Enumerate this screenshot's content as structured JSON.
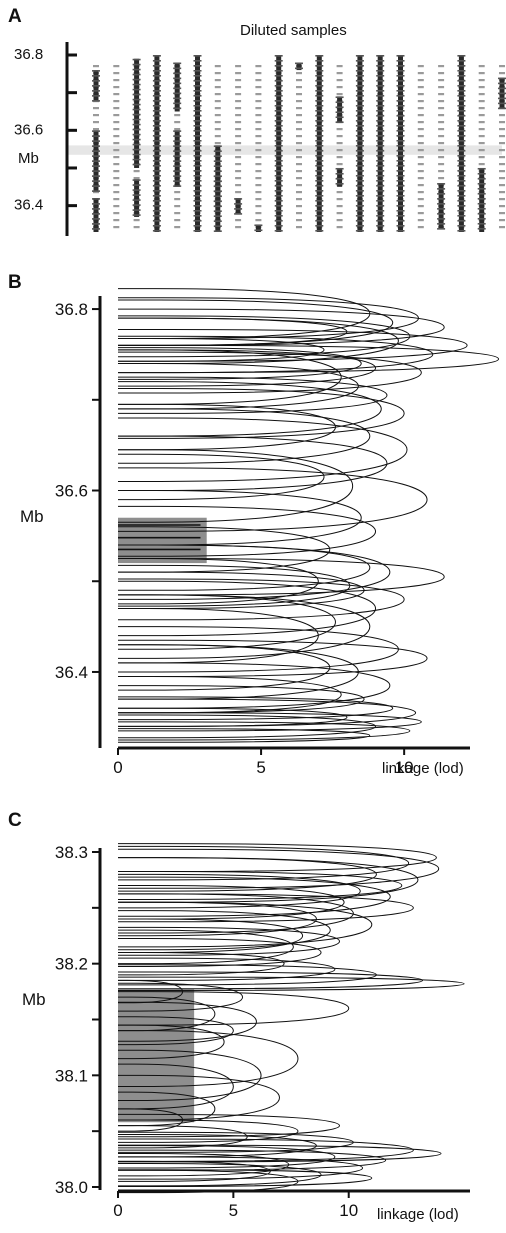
{
  "chart_data": [
    {
      "panel": "A",
      "type": "heatmap",
      "title": "Diluted samples",
      "ylabel": "Mb",
      "ylim": [
        36.33,
        36.8
      ],
      "yticks": [
        "36.8",
        "36.6",
        "36.4"
      ],
      "highlight_band": [
        36.535,
        36.56
      ],
      "num_samples": 21,
      "samples": [
        {
          "solid": [
            [
              36.68,
              36.76
            ],
            [
              36.44,
              36.6
            ],
            [
              36.33,
              36.42
            ]
          ]
        },
        {
          "solid": []
        },
        {
          "solid": [
            [
              36.5,
              36.79
            ],
            [
              36.37,
              36.47
            ]
          ]
        },
        {
          "solid": [
            [
              36.33,
              36.8
            ]
          ]
        },
        {
          "solid": [
            [
              36.65,
              36.78
            ],
            [
              36.45,
              36.6
            ]
          ]
        },
        {
          "solid": [
            [
              36.33,
              36.8
            ]
          ]
        },
        {
          "solid": [
            [
              36.33,
              36.56
            ],
            [
              36.4,
              36.48
            ]
          ]
        },
        {
          "solid": [
            [
              36.38,
              36.42
            ]
          ]
        },
        {
          "solid": [
            [
              36.33,
              36.35
            ]
          ]
        },
        {
          "solid": [
            [
              36.33,
              36.8
            ]
          ]
        },
        {
          "solid": [
            [
              36.76,
              36.78
            ]
          ]
        },
        {
          "solid": [
            [
              36.33,
              36.8
            ]
          ]
        },
        {
          "solid": [
            [
              36.45,
              36.5
            ],
            [
              36.62,
              36.69
            ]
          ]
        },
        {
          "solid": [
            [
              36.33,
              36.8
            ]
          ]
        },
        {
          "solid": [
            [
              36.33,
              36.8
            ]
          ]
        },
        {
          "solid": [
            [
              36.33,
              36.8
            ]
          ]
        },
        {
          "solid": []
        },
        {
          "solid": [
            [
              36.34,
              36.46
            ]
          ]
        },
        {
          "solid": [
            [
              36.33,
              36.8
            ]
          ]
        },
        {
          "solid": [
            [
              36.33,
              36.5
            ]
          ]
        },
        {
          "solid": [
            [
              36.66,
              36.74
            ]
          ]
        }
      ]
    },
    {
      "panel": "B",
      "type": "line",
      "xlabel": "linkage (lod)",
      "ylabel": "Mb",
      "xlim": [
        0,
        13
      ],
      "ylim": [
        36.325,
        36.81
      ],
      "xticks": [
        "0",
        "5",
        "10"
      ],
      "yticks": [
        "36.8",
        "36.6",
        "36.4"
      ],
      "highlight_box": {
        "x": [
          0,
          3.1
        ],
        "y": [
          36.52,
          36.57
        ],
        "lines_y": [
          36.535,
          36.548,
          36.562
        ]
      },
      "peaks": [
        {
          "y": 36.795,
          "width": 0.055,
          "lod": 8.8
        },
        {
          "y": 36.79,
          "width": 0.045,
          "lod": 10.5
        },
        {
          "y": 36.785,
          "width": 0.05,
          "lod": 9.6
        },
        {
          "y": 36.78,
          "width": 0.04,
          "lod": 11.4
        },
        {
          "y": 36.775,
          "width": 0.03,
          "lod": 8.0
        },
        {
          "y": 36.77,
          "width": 0.045,
          "lod": 10.2
        },
        {
          "y": 36.765,
          "width": 0.05,
          "lod": 9.8
        },
        {
          "y": 36.76,
          "width": 0.035,
          "lod": 12.2
        },
        {
          "y": 36.755,
          "width": 0.025,
          "lod": 7.2
        },
        {
          "y": 36.75,
          "width": 0.04,
          "lod": 11.0
        },
        {
          "y": 36.745,
          "width": 0.03,
          "lod": 13.3
        },
        {
          "y": 36.74,
          "width": 0.035,
          "lod": 8.5
        },
        {
          "y": 36.735,
          "width": 0.04,
          "lod": 9.0
        },
        {
          "y": 36.73,
          "width": 0.045,
          "lod": 10.6
        },
        {
          "y": 36.725,
          "width": 0.06,
          "lod": 7.8
        },
        {
          "y": 36.715,
          "width": 0.05,
          "lod": 8.4
        },
        {
          "y": 36.705,
          "width": 0.04,
          "lod": 9.4
        },
        {
          "y": 36.69,
          "width": 0.06,
          "lod": 9.2
        },
        {
          "y": 36.685,
          "width": 0.055,
          "lod": 10.0
        },
        {
          "y": 36.67,
          "width": 0.05,
          "lod": 7.6
        },
        {
          "y": 36.66,
          "width": 0.06,
          "lod": 8.8
        },
        {
          "y": 36.645,
          "width": 0.07,
          "lod": 10.1
        },
        {
          "y": 36.63,
          "width": 0.06,
          "lod": 9.4
        },
        {
          "y": 36.615,
          "width": 0.05,
          "lod": 7.2
        },
        {
          "y": 36.605,
          "width": 0.08,
          "lod": 8.2
        },
        {
          "y": 36.59,
          "width": 0.07,
          "lod": 10.8
        },
        {
          "y": 36.57,
          "width": 0.06,
          "lod": 8.5
        },
        {
          "y": 36.555,
          "width": 0.055,
          "lod": 9.0
        },
        {
          "y": 36.535,
          "width": 0.05,
          "lod": 7.4
        },
        {
          "y": 36.515,
          "width": 0.05,
          "lod": 8.8
        },
        {
          "y": 36.51,
          "width": 0.06,
          "lod": 9.5
        },
        {
          "y": 36.505,
          "width": 0.04,
          "lod": 11.4
        },
        {
          "y": 36.5,
          "width": 0.05,
          "lod": 7.0
        },
        {
          "y": 36.495,
          "width": 0.045,
          "lod": 8.1
        },
        {
          "y": 36.49,
          "width": 0.04,
          "lod": 8.6
        },
        {
          "y": 36.48,
          "width": 0.045,
          "lod": 10.0
        },
        {
          "y": 36.47,
          "width": 0.06,
          "lod": 9.0
        },
        {
          "y": 36.455,
          "width": 0.06,
          "lod": 7.6
        },
        {
          "y": 36.45,
          "width": 0.07,
          "lod": 8.8
        },
        {
          "y": 36.44,
          "width": 0.06,
          "lod": 7.0
        },
        {
          "y": 36.425,
          "width": 0.05,
          "lod": 9.8
        },
        {
          "y": 36.415,
          "width": 0.04,
          "lod": 10.8
        },
        {
          "y": 36.405,
          "width": 0.05,
          "lod": 7.4
        },
        {
          "y": 36.4,
          "width": 0.06,
          "lod": 8.4
        },
        {
          "y": 36.385,
          "width": 0.05,
          "lod": 9.5
        },
        {
          "y": 36.375,
          "width": 0.04,
          "lod": 7.8
        },
        {
          "y": 36.37,
          "width": 0.03,
          "lod": 8.6
        },
        {
          "y": 36.36,
          "width": 0.025,
          "lod": 9.6
        },
        {
          "y": 36.355,
          "width": 0.03,
          "lod": 10.4
        },
        {
          "y": 36.35,
          "width": 0.02,
          "lod": 8.0
        },
        {
          "y": 36.345,
          "width": 0.02,
          "lod": 10.6
        },
        {
          "y": 36.34,
          "width": 0.025,
          "lod": 9.0
        },
        {
          "y": 36.335,
          "width": 0.02,
          "lod": 10.2
        },
        {
          "y": 36.33,
          "width": 0.015,
          "lod": 8.8
        }
      ]
    },
    {
      "panel": "C",
      "type": "line",
      "xlabel": "linkage (lod)",
      "ylabel": "Mb",
      "xlim": [
        0,
        15.3
      ],
      "ylim": [
        38.0,
        38.3
      ],
      "xticks": [
        "0",
        "5",
        "10"
      ],
      "yticks": [
        "38.3",
        "38.2",
        "38.1",
        "38.0"
      ],
      "highlight_box": {
        "x": [
          0,
          3.3
        ],
        "y": [
          38.058,
          38.177
        ]
      },
      "peaks": [
        {
          "y": 38.295,
          "width": 0.025,
          "lod": 13.8
        },
        {
          "y": 38.29,
          "width": 0.03,
          "lod": 12.6
        },
        {
          "y": 38.285,
          "width": 0.035,
          "lod": 13.9
        },
        {
          "y": 38.28,
          "width": 0.03,
          "lod": 11.2
        },
        {
          "y": 38.275,
          "width": 0.04,
          "lod": 13.0
        },
        {
          "y": 38.27,
          "width": 0.025,
          "lod": 12.3
        },
        {
          "y": 38.265,
          "width": 0.03,
          "lod": 10.5
        },
        {
          "y": 38.26,
          "width": 0.035,
          "lod": 11.8
        },
        {
          "y": 38.255,
          "width": 0.03,
          "lod": 9.8
        },
        {
          "y": 38.25,
          "width": 0.025,
          "lod": 12.8
        },
        {
          "y": 38.245,
          "width": 0.035,
          "lod": 10.2
        },
        {
          "y": 38.24,
          "width": 0.03,
          "lod": 8.6
        },
        {
          "y": 38.235,
          "width": 0.04,
          "lod": 11.0
        },
        {
          "y": 38.23,
          "width": 0.035,
          "lod": 9.2
        },
        {
          "y": 38.225,
          "width": 0.03,
          "lod": 8.0
        },
        {
          "y": 38.22,
          "width": 0.025,
          "lod": 9.6
        },
        {
          "y": 38.215,
          "width": 0.03,
          "lod": 7.6
        },
        {
          "y": 38.21,
          "width": 0.025,
          "lod": 8.8
        },
        {
          "y": 38.2,
          "width": 0.02,
          "lod": 7.2
        },
        {
          "y": 38.195,
          "width": 0.02,
          "lod": 9.4
        },
        {
          "y": 38.19,
          "width": 0.018,
          "lod": 11.2
        },
        {
          "y": 38.185,
          "width": 0.015,
          "lod": 13.2
        },
        {
          "y": 38.182,
          "width": 0.012,
          "lod": 15.0
        },
        {
          "y": 38.175,
          "width": 0.02,
          "lod": 2.8
        },
        {
          "y": 38.17,
          "width": 0.025,
          "lod": 5.4
        },
        {
          "y": 38.16,
          "width": 0.03,
          "lod": 10.0
        },
        {
          "y": 38.155,
          "width": 0.03,
          "lod": 4.2
        },
        {
          "y": 38.148,
          "width": 0.035,
          "lod": 6.0
        },
        {
          "y": 38.14,
          "width": 0.025,
          "lod": 5.0
        },
        {
          "y": 38.13,
          "width": 0.03,
          "lod": 4.6
        },
        {
          "y": 38.115,
          "width": 0.05,
          "lod": 7.8
        },
        {
          "y": 38.1,
          "width": 0.045,
          "lod": 6.2
        },
        {
          "y": 38.09,
          "width": 0.04,
          "lod": 5.0
        },
        {
          "y": 38.08,
          "width": 0.04,
          "lod": 7.0
        },
        {
          "y": 38.07,
          "width": 0.03,
          "lod": 4.2
        },
        {
          "y": 38.06,
          "width": 0.02,
          "lod": 2.8
        },
        {
          "y": 38.055,
          "width": 0.02,
          "lod": 9.6
        },
        {
          "y": 38.05,
          "width": 0.02,
          "lod": 7.8
        },
        {
          "y": 38.045,
          "width": 0.02,
          "lod": 5.6
        },
        {
          "y": 38.04,
          "width": 0.018,
          "lod": 10.2
        },
        {
          "y": 38.037,
          "width": 0.02,
          "lod": 8.6
        },
        {
          "y": 38.033,
          "width": 0.02,
          "lod": 12.8
        },
        {
          "y": 38.03,
          "width": 0.015,
          "lod": 14.0
        },
        {
          "y": 38.027,
          "width": 0.02,
          "lod": 9.4
        },
        {
          "y": 38.024,
          "width": 0.018,
          "lod": 11.6
        },
        {
          "y": 38.02,
          "width": 0.02,
          "lod": 7.4
        },
        {
          "y": 38.017,
          "width": 0.02,
          "lod": 10.6
        },
        {
          "y": 38.014,
          "width": 0.018,
          "lod": 6.6
        },
        {
          "y": 38.011,
          "width": 0.02,
          "lod": 8.8
        },
        {
          "y": 38.008,
          "width": 0.015,
          "lod": 11.0
        },
        {
          "y": 38.005,
          "width": 0.02,
          "lod": 7.8
        }
      ]
    }
  ]
}
